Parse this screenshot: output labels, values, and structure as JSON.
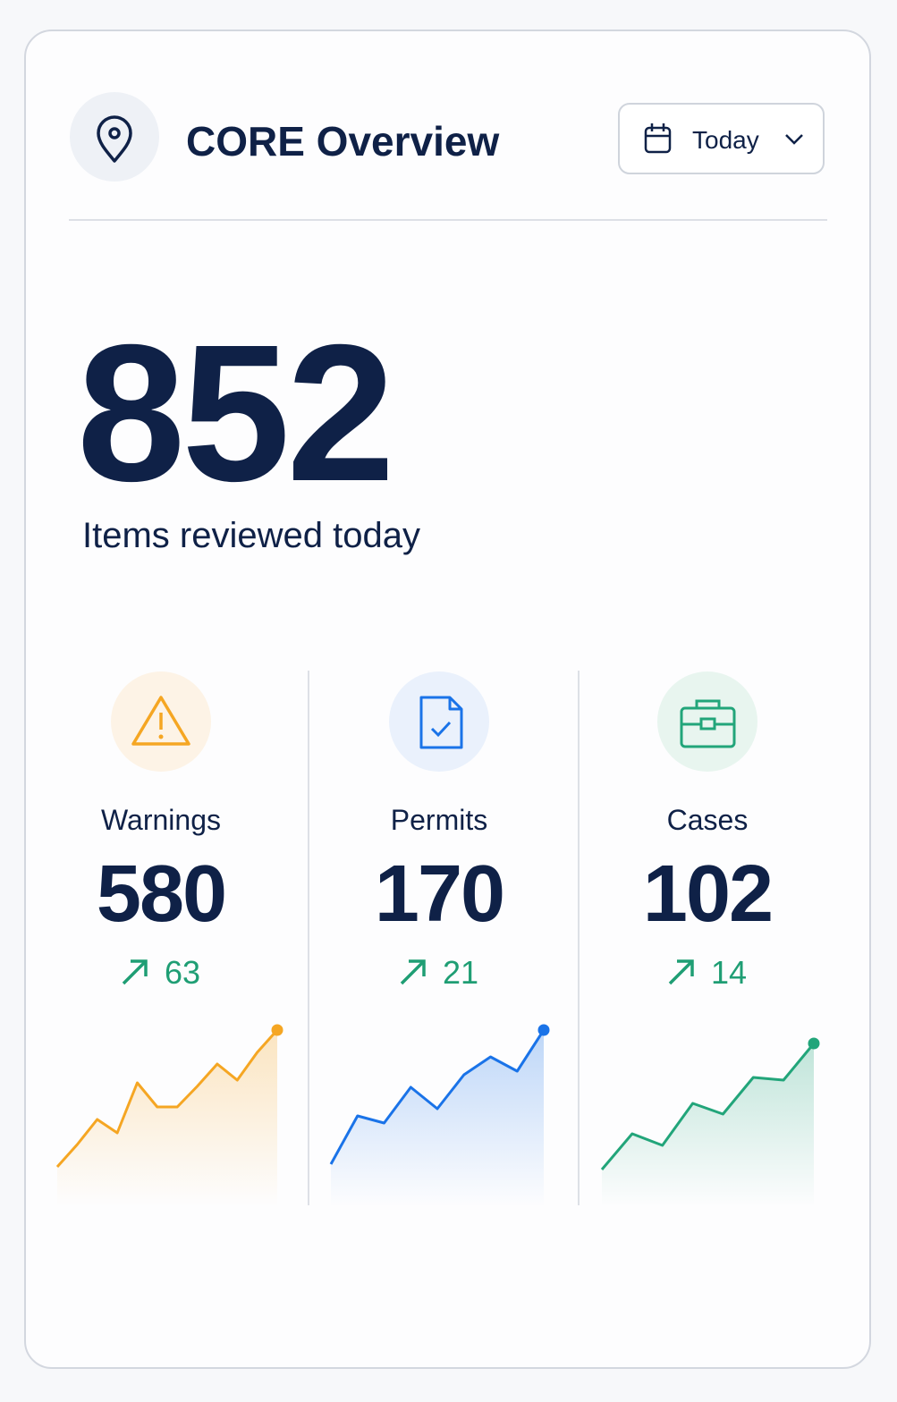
{
  "header": {
    "title": "CORE Overview",
    "period": "Today"
  },
  "summary": {
    "value": 852,
    "label": "Items reviewed today"
  },
  "metrics": [
    {
      "label": "Warnings",
      "value": 580,
      "change": 63,
      "color": "#f5a623",
      "trend": [
        17.5,
        30,
        44,
        36.5,
        64.5,
        51,
        51,
        62.5,
        75,
        66,
        81.5,
        94
      ]
    },
    {
      "label": "Permits",
      "value": 170,
      "change": 21,
      "color": "#1a73e8",
      "trend": [
        19,
        46,
        42,
        62,
        50,
        69,
        79,
        71,
        94
      ]
    },
    {
      "label": "Cases",
      "value": 102,
      "change": 14,
      "color": "#22a57a",
      "trend": [
        16,
        36,
        29.5,
        53,
        47,
        67.5,
        66,
        86.5
      ]
    }
  ]
}
